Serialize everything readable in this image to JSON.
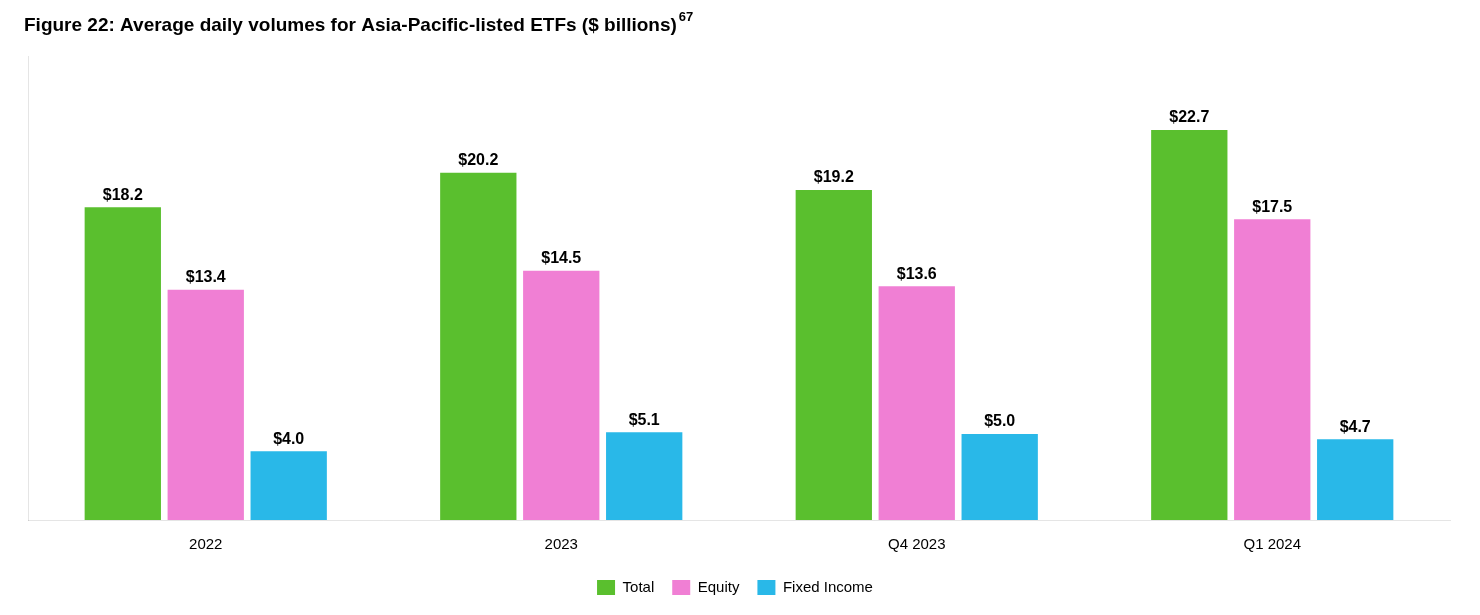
{
  "chart_data": {
    "type": "bar",
    "title": "Figure 22: Average daily volumes for Asia-Pacific-listed ETFs ($ billions)",
    "annotations": [
      "67"
    ],
    "categories": [
      "2022",
      "2023",
      "Q4 2023",
      "Q1 2024"
    ],
    "series": [
      {
        "name": "Total",
        "color": "#5abf2e",
        "values": [
          18.2,
          20.2,
          19.2,
          22.7
        ],
        "value_labels": [
          "$18.2",
          "$20.2",
          "$19.2",
          "$22.7"
        ]
      },
      {
        "name": "Equity",
        "color": "#f07fd4",
        "values": [
          13.4,
          14.5,
          13.6,
          17.5
        ],
        "value_labels": [
          "$13.4",
          "$14.5",
          "$13.6",
          "$17.5"
        ]
      },
      {
        "name": "Fixed Income",
        "color": "#29b8e8",
        "values": [
          4.0,
          5.1,
          5.0,
          4.7
        ],
        "value_labels": [
          "$4.0",
          "$5.1",
          "$5.0",
          "$4.7"
        ]
      }
    ],
    "ylim": [
      0,
      27
    ],
    "grid": false,
    "legend": "bottom",
    "data_labels": true,
    "tick_labels": "x"
  }
}
